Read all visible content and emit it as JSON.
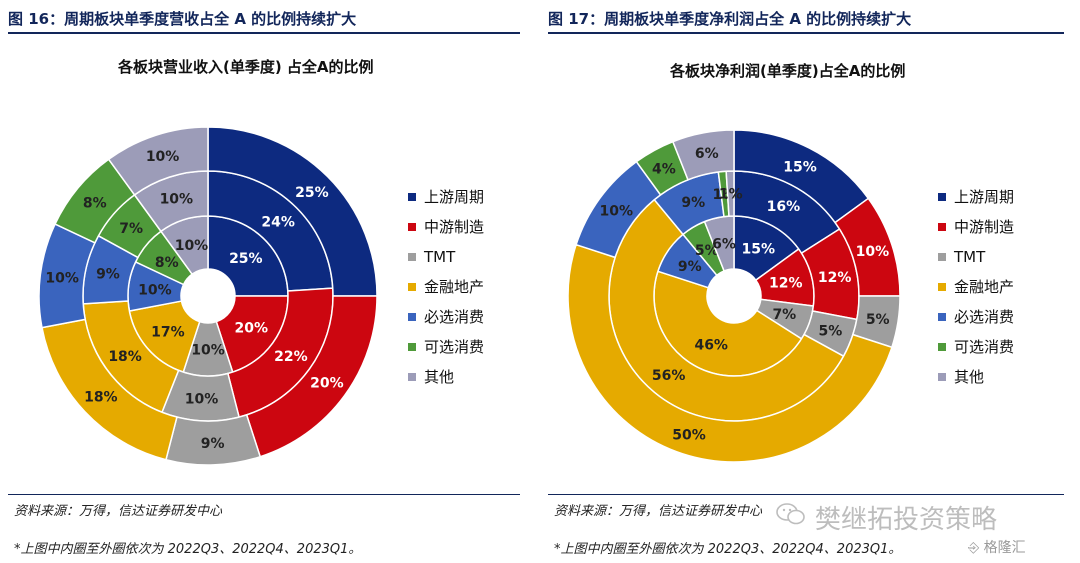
{
  "colors": {
    "title": "#12265a",
    "upstream": "#0d2a80",
    "midstream": "#cc0610",
    "tmt": "#9e9e9e",
    "finance": "#e5aa00",
    "staples": "#3a64be",
    "discretionary": "#4f9a3a",
    "other": "#9c9cb8"
  },
  "left": {
    "fig_title": "图 16：周期板块单季度营收占全 A 的比例持续扩大",
    "chart_title": "各板块营业收入(单季度)  占全A的比例",
    "legend": [
      "上游周期",
      "中游制造",
      "TMT",
      "金融地产",
      "必选消费",
      "可选消费",
      "其他"
    ],
    "source": "资料来源：万得，信达证券研发中心",
    "note": "*上图中内圈至外圈依次为 2022Q3、2022Q4、2023Q1。",
    "chart_data": {
      "type": "pie",
      "title": "各板块营业收入(单季度)  占全A的比例",
      "categories": [
        "上游周期",
        "中游制造",
        "TMT",
        "金融地产",
        "必选消费",
        "可选消费",
        "其他"
      ],
      "series": [
        {
          "name": "2022Q3",
          "values": [
            25,
            20,
            10,
            17,
            10,
            8,
            10
          ],
          "labels": [
            "25%",
            "20%",
            "10%",
            "17%",
            "10%",
            "8%",
            "10%"
          ]
        },
        {
          "name": "2022Q4",
          "values": [
            24,
            22,
            10,
            18,
            9,
            7,
            10
          ],
          "labels": [
            "24%",
            "22%",
            "10%",
            "18%",
            "9%",
            "7%",
            "10%"
          ]
        },
        {
          "name": "2023Q1",
          "values": [
            25,
            20,
            9,
            18,
            10,
            8,
            10
          ],
          "labels": [
            "25%",
            "20%",
            "9%",
            "18%",
            "10%",
            "8%",
            "10%"
          ]
        }
      ]
    }
  },
  "right": {
    "fig_title": "图 17：周期板块单季度净利润占全 A 的比例持续扩大",
    "chart_title": "各板块净利润(单季度)占全A的比例",
    "legend": [
      "上游周期",
      "中游制造",
      "TMT",
      "金融地产",
      "必选消费",
      "可选消费",
      "其他"
    ],
    "source": "资料来源：万得，信达证券研发中心",
    "note": "*上图中内圈至外圈依次为 2022Q3、2022Q4、2023Q1。",
    "watermark": "樊继拓投资策略",
    "corner_logo": "格隆汇",
    "chart_data": {
      "type": "pie",
      "title": "各板块净利润(单季度)占全A的比例",
      "categories": [
        "上游周期",
        "中游制造",
        "TMT",
        "金融地产",
        "必选消费",
        "可选消费",
        "其他"
      ],
      "series": [
        {
          "name": "2022Q3",
          "values": [
            15,
            12,
            7,
            46,
            9,
            5,
            6
          ],
          "labels": [
            "15%",
            "12%",
            "7%",
            "46%",
            "9%",
            "5%",
            "6%"
          ]
        },
        {
          "name": "2022Q4",
          "values": [
            16,
            12,
            5,
            56,
            9,
            1,
            1
          ],
          "labels": [
            "16%",
            "12%",
            "5%",
            "56%",
            "9%",
            "1%",
            "1%"
          ]
        },
        {
          "name": "2023Q1",
          "values": [
            15,
            10,
            5,
            50,
            10,
            4,
            6
          ],
          "labels": [
            "15%",
            "10%",
            "5%",
            "50%",
            "10%",
            "4%",
            "6%"
          ]
        }
      ]
    }
  }
}
